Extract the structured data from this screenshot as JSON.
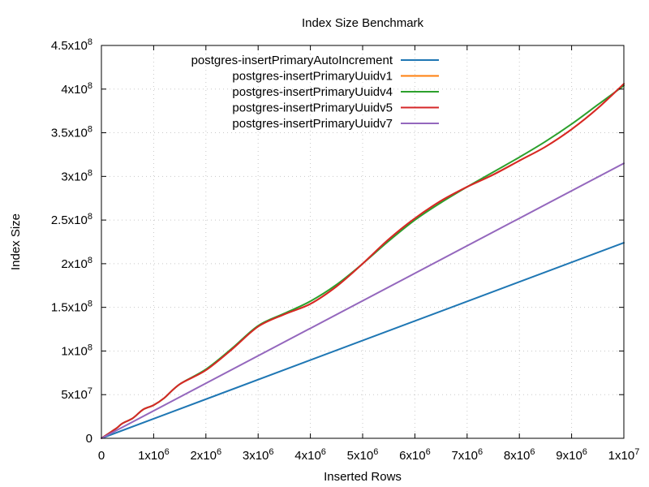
{
  "chart_data": {
    "type": "line",
    "title": "Index Size Benchmark",
    "xlabel": "Inserted Rows",
    "ylabel": "Index Size",
    "xlim": [
      0,
      10000000
    ],
    "ylim": [
      0,
      450000000
    ],
    "grid": true,
    "legend_position": "top-left",
    "x_ticks": [
      {
        "value": 0,
        "base": "0",
        "exp": ""
      },
      {
        "value": 1000000,
        "base": "1x10",
        "exp": "6"
      },
      {
        "value": 2000000,
        "base": "2x10",
        "exp": "6"
      },
      {
        "value": 3000000,
        "base": "3x10",
        "exp": "6"
      },
      {
        "value": 4000000,
        "base": "4x10",
        "exp": "6"
      },
      {
        "value": 5000000,
        "base": "5x10",
        "exp": "6"
      },
      {
        "value": 6000000,
        "base": "6x10",
        "exp": "6"
      },
      {
        "value": 7000000,
        "base": "7x10",
        "exp": "6"
      },
      {
        "value": 8000000,
        "base": "8x10",
        "exp": "6"
      },
      {
        "value": 9000000,
        "base": "9x10",
        "exp": "6"
      },
      {
        "value": 10000000,
        "base": "1x10",
        "exp": "7"
      }
    ],
    "y_ticks": [
      {
        "value": 0,
        "base": "0",
        "exp": ""
      },
      {
        "value": 50000000,
        "base": "5x10",
        "exp": "7"
      },
      {
        "value": 100000000,
        "base": "1x10",
        "exp": "8"
      },
      {
        "value": 150000000,
        "base": "1.5x10",
        "exp": "8"
      },
      {
        "value": 200000000,
        "base": "2x10",
        "exp": "8"
      },
      {
        "value": 250000000,
        "base": "2.5x10",
        "exp": "8"
      },
      {
        "value": 300000000,
        "base": "3x10",
        "exp": "8"
      },
      {
        "value": 350000000,
        "base": "3.5x10",
        "exp": "8"
      },
      {
        "value": 400000000,
        "base": "4x10",
        "exp": "8"
      },
      {
        "value": 450000000,
        "base": "4.5x10",
        "exp": "8"
      }
    ],
    "series": [
      {
        "name": "postgres-insertPrimaryAutoIncrement",
        "color": "#1f77b4",
        "x": [
          0,
          10000000
        ],
        "y": [
          0,
          224000000
        ]
      },
      {
        "name": "postgres-insertPrimaryUuidv1",
        "color": "#ff7f0e",
        "x": [
          0,
          200000,
          300000,
          400000,
          600000,
          800000,
          1000000,
          1200000,
          1500000,
          2000000,
          2500000,
          3000000,
          3500000,
          4000000,
          4500000,
          5000000,
          5500000,
          6000000,
          6500000,
          7000000,
          7500000,
          8000000,
          8500000,
          9000000,
          9500000,
          10000000
        ],
        "y": [
          0,
          8000000,
          12000000,
          17000000,
          23000000,
          33000000,
          38000000,
          46000000,
          62000000,
          78000000,
          102000000,
          128000000,
          142000000,
          154000000,
          174000000,
          200000000,
          228000000,
          252000000,
          272000000,
          288000000,
          302000000,
          318000000,
          334000000,
          354000000,
          378000000,
          406000000
        ]
      },
      {
        "name": "postgres-insertPrimaryUuidv4",
        "color": "#2ca02c",
        "x": [
          0,
          200000,
          300000,
          400000,
          600000,
          800000,
          1000000,
          1200000,
          1500000,
          2000000,
          2500000,
          3000000,
          3500000,
          4000000,
          4500000,
          5000000,
          5500000,
          6000000,
          6500000,
          7000000,
          7500000,
          8000000,
          8500000,
          9000000,
          9500000,
          10000000
        ],
        "y": [
          0,
          8000000,
          12000000,
          17000000,
          23000000,
          33000000,
          38000000,
          46000000,
          62000000,
          79000000,
          103000000,
          129000000,
          143000000,
          157000000,
          176000000,
          200000000,
          226000000,
          250000000,
          270000000,
          288000000,
          305000000,
          322000000,
          340000000,
          360000000,
          382000000,
          404000000
        ]
      },
      {
        "name": "postgres-insertPrimaryUuidv5",
        "color": "#d62728",
        "x": [
          0,
          200000,
          300000,
          400000,
          600000,
          800000,
          1000000,
          1200000,
          1500000,
          2000000,
          2500000,
          3000000,
          3500000,
          4000000,
          4500000,
          5000000,
          5500000,
          6000000,
          6500000,
          7000000,
          7500000,
          8000000,
          8500000,
          9000000,
          9500000,
          10000000
        ],
        "y": [
          0,
          8000000,
          12000000,
          17000000,
          23000000,
          33000000,
          38000000,
          46000000,
          62000000,
          78000000,
          102000000,
          128000000,
          142000000,
          154000000,
          174000000,
          200000000,
          228000000,
          252000000,
          272000000,
          288000000,
          302000000,
          318000000,
          334000000,
          354000000,
          378000000,
          406000000
        ]
      },
      {
        "name": "postgres-insertPrimaryUuidv7",
        "color": "#9467bd",
        "x": [
          0,
          10000000
        ],
        "y": [
          0,
          315000000
        ]
      }
    ]
  }
}
